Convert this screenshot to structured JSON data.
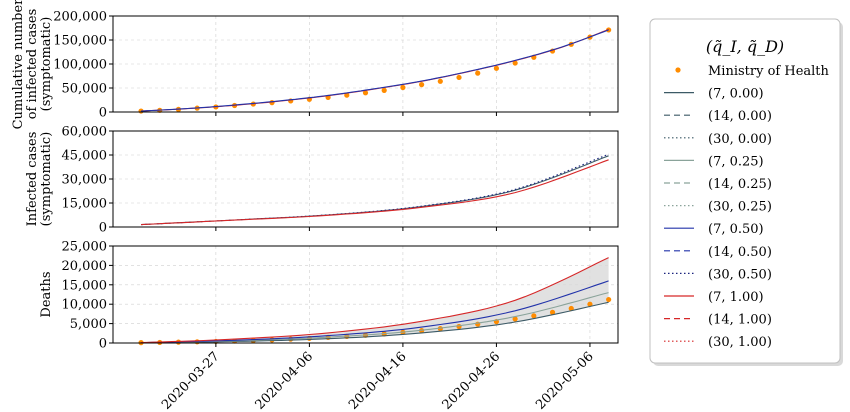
{
  "chart_data": [
    {
      "type": "line",
      "ylabel_lines": [
        "Cumulative number",
        "of infected cases",
        "(symptomatic)"
      ],
      "ylim": [
        0,
        200000
      ],
      "ytick_values": [
        0,
        50000,
        100000,
        150000,
        200000
      ],
      "ytick_labels": [
        "0",
        "50,000",
        "100,000",
        "150,000",
        "200,000"
      ],
      "series": [
        {
          "name": "Ministry of Health",
          "style": "points",
          "x": [
            0,
            2,
            4,
            6,
            8,
            10,
            12,
            14,
            16,
            18,
            20,
            22,
            24,
            26,
            28,
            30,
            32,
            34,
            36,
            38,
            40,
            42,
            44,
            46,
            48,
            50
          ],
          "values": [
            2000,
            3500,
            5500,
            8000,
            10500,
            13500,
            16500,
            19500,
            23000,
            26500,
            30500,
            35000,
            40000,
            45000,
            51000,
            57000,
            64000,
            72000,
            81000,
            91000,
            102000,
            114000,
            127000,
            141000,
            156000,
            171000
          ]
        },
        {
          "name": "(7, 1.00)",
          "style": "solid",
          "color": "#d62728",
          "x": [
            0,
            5,
            10,
            15,
            20,
            25,
            30,
            35,
            40,
            45,
            50
          ],
          "values": [
            2000,
            7000,
            14000,
            23000,
            34000,
            48000,
            64000,
            84000,
            107000,
            135000,
            172000
          ]
        },
        {
          "name": "(7, 0.50)",
          "style": "solid",
          "color": "#2233aa",
          "x": [
            0,
            5,
            10,
            15,
            20,
            25,
            30,
            35,
            40,
            45,
            50
          ],
          "values": [
            2000,
            7200,
            14500,
            23500,
            34500,
            48500,
            64500,
            84500,
            107500,
            135500,
            171000
          ]
        }
      ]
    },
    {
      "type": "line",
      "ylabel_lines": [
        "Infected cases",
        "(symptomatic)"
      ],
      "ylim": [
        0,
        60000
      ],
      "ytick_values": [
        0,
        15000,
        30000,
        45000,
        60000
      ],
      "ytick_labels": [
        "0",
        "15,000",
        "30,000",
        "45,000",
        "60,000"
      ],
      "series": [
        {
          "name": "(7, 0.00)",
          "style": "solid",
          "color": "#3c5a66",
          "x": [
            0,
            10,
            20,
            30,
            40,
            50
          ],
          "values": [
            1500,
            4400,
            7500,
            12800,
            23000,
            44500
          ]
        },
        {
          "name": "(30, 0.50)",
          "style": "dotted",
          "color": "#1a237e",
          "x": [
            0,
            10,
            20,
            30,
            40,
            50
          ],
          "values": [
            1500,
            4400,
            7600,
            13000,
            23500,
            45500
          ]
        },
        {
          "name": "(7, 1.00)",
          "style": "solid",
          "color": "#d62728",
          "x": [
            0,
            10,
            20,
            30,
            40,
            50
          ],
          "values": [
            1500,
            4300,
            7300,
            12300,
            21500,
            42000
          ]
        }
      ]
    },
    {
      "type": "line",
      "ylabel_lines": [
        "Deaths"
      ],
      "ylim": [
        0,
        25000
      ],
      "ytick_values": [
        0,
        5000,
        10000,
        15000,
        20000,
        25000
      ],
      "ytick_labels": [
        "0",
        "5,000",
        "10,000",
        "15,000",
        "20,000",
        "25,000"
      ],
      "band": {
        "x": [
          0,
          10,
          20,
          30,
          40,
          50
        ],
        "lower": [
          100,
          400,
          1100,
          2600,
          5400,
          10500
        ],
        "upper": [
          100,
          1000,
          2600,
          5600,
          11000,
          22000
        ]
      },
      "series": [
        {
          "name": "Ministry of Health",
          "style": "points",
          "x": [
            0,
            2,
            4,
            6,
            8,
            10,
            12,
            14,
            16,
            18,
            20,
            22,
            24,
            26,
            28,
            30,
            32,
            34,
            36,
            38,
            40,
            42,
            44,
            46,
            48,
            50
          ],
          "values": [
            100,
            150,
            220,
            300,
            400,
            500,
            650,
            800,
            1000,
            1200,
            1450,
            1700,
            2000,
            2350,
            2750,
            3200,
            3700,
            4250,
            4850,
            5500,
            6200,
            7000,
            7900,
            8900,
            10000,
            11200
          ]
        },
        {
          "name": "(7, 0.00)",
          "style": "solid",
          "color": "#3c5a66",
          "x": [
            0,
            10,
            20,
            30,
            40,
            50
          ],
          "values": [
            100,
            400,
            1100,
            2600,
            5400,
            10500
          ]
        },
        {
          "name": "(7, 0.25)",
          "style": "solid",
          "color": "#8aa39a",
          "x": [
            0,
            10,
            20,
            30,
            40,
            50
          ],
          "values": [
            100,
            550,
            1500,
            3300,
            6800,
            13000
          ]
        },
        {
          "name": "(7, 0.50)",
          "style": "solid",
          "color": "#2233aa",
          "x": [
            0,
            10,
            20,
            30,
            40,
            50
          ],
          "values": [
            100,
            700,
            1900,
            4100,
            8300,
            16000
          ]
        },
        {
          "name": "(7, 1.00)",
          "style": "solid",
          "color": "#d62728",
          "x": [
            0,
            10,
            20,
            30,
            40,
            50
          ],
          "values": [
            100,
            1000,
            2600,
            5600,
            11000,
            22000
          ]
        }
      ]
    }
  ],
  "x_ticks": {
    "positions": [
      8,
      18,
      28,
      38,
      48
    ],
    "labels": [
      "2020-03-27",
      "2020-04-06",
      "2020-04-16",
      "2020-04-26",
      "2020-05-06"
    ]
  },
  "x_range": [
    -3,
    51
  ],
  "legend": {
    "placement": "right",
    "title": "(q̃_I, q̃_D)",
    "entries": [
      {
        "label": "Ministry of Health",
        "style": "points",
        "color": "#ff8c00"
      },
      {
        "label": "(7, 0.00)",
        "style": "solid",
        "color": "#3c5a66"
      },
      {
        "label": "(14, 0.00)",
        "style": "dashed",
        "color": "#3c5a66"
      },
      {
        "label": "(30, 0.00)",
        "style": "dotted",
        "color": "#3c5a66"
      },
      {
        "label": "(7, 0.25)",
        "style": "solid",
        "color": "#8aa39a"
      },
      {
        "label": "(14, 0.25)",
        "style": "dashed",
        "color": "#8aa39a"
      },
      {
        "label": "(30, 0.25)",
        "style": "dotted",
        "color": "#8aa39a"
      },
      {
        "label": "(7, 0.50)",
        "style": "solid",
        "color": "#2233aa"
      },
      {
        "label": "(14, 0.50)",
        "style": "dashed",
        "color": "#2233aa"
      },
      {
        "label": "(30, 0.50)",
        "style": "dotted",
        "color": "#1a237e"
      },
      {
        "label": "(7, 1.00)",
        "style": "solid",
        "color": "#d62728"
      },
      {
        "label": "(14, 1.00)",
        "style": "dashed",
        "color": "#d62728"
      },
      {
        "label": "(30, 1.00)",
        "style": "dotted",
        "color": "#d62728"
      }
    ]
  },
  "colors": {
    "points": "#ff8c00",
    "band": "#d9d9d9",
    "grid": "#d0d0d0",
    "axis": "#000000"
  }
}
